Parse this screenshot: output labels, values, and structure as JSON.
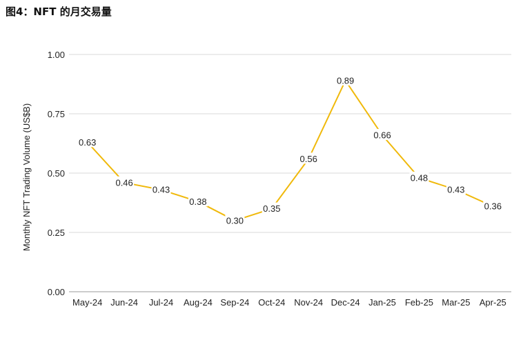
{
  "title": "图4：NFT 的月交易量",
  "chart_data": {
    "type": "line",
    "title": "图4：NFT 的月交易量",
    "xlabel": "",
    "ylabel": "Monthly NFT Trading Volume (US$B)",
    "ylim": [
      0,
      1
    ],
    "yticks": [
      "0.00",
      "0.25",
      "0.50",
      "0.75",
      "1.00"
    ],
    "categories": [
      "May-24",
      "Jun-24",
      "Jul-24",
      "Aug-24",
      "Sep-24",
      "Oct-24",
      "Nov-24",
      "Dec-24",
      "Jan-25",
      "Feb-25",
      "Mar-25",
      "Apr-25"
    ],
    "values": [
      0.63,
      0.46,
      0.43,
      0.38,
      0.3,
      0.35,
      0.56,
      0.89,
      0.66,
      0.48,
      0.43,
      0.36
    ],
    "data_labels": [
      "0.63",
      "0.46",
      "0.43",
      "0.38",
      "0.30",
      "0.35",
      "0.56",
      "0.89",
      "0.66",
      "0.48",
      "0.43",
      "0.36"
    ],
    "grid": true,
    "legend": "none",
    "line_color": "#F0B90B",
    "grid_color": "#d9d9d9"
  }
}
